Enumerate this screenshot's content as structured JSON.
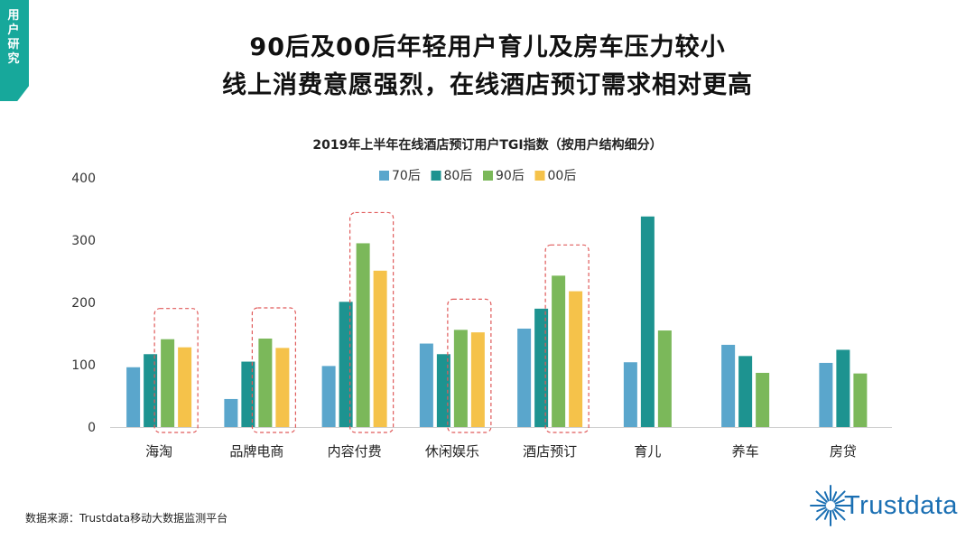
{
  "section_tag": "用户研究",
  "headline": {
    "line1": "90后及00后年轻用户育儿及房车压力较小",
    "line2": "线上消费意愿强烈，在线酒店预订需求相对更高"
  },
  "source_note": "数据来源：Trustdata移动大数据监测平台",
  "brand": {
    "name": "Trustdata",
    "color": "#1a6fb3"
  },
  "chart_data": {
    "type": "bar",
    "title": "2019年上半年在线酒店预订用户TGI指数（按用户结构细分）",
    "categories": [
      "海淘",
      "品牌电商",
      "内容付费",
      "休闲娱乐",
      "酒店预订",
      "育儿",
      "养车",
      "房贷"
    ],
    "series": [
      {
        "name": "70后",
        "color": "#5aa6cc",
        "values": [
          96,
          45,
          98,
          134,
          158,
          104,
          132,
          103
        ]
      },
      {
        "name": "80后",
        "color": "#1d9390",
        "values": [
          117,
          105,
          201,
          117,
          190,
          338,
          114,
          124
        ]
      },
      {
        "name": "90后",
        "color": "#7bb85a",
        "values": [
          141,
          142,
          295,
          156,
          243,
          155,
          87,
          86
        ]
      },
      {
        "name": "00后",
        "color": "#f5c24a",
        "values": [
          128,
          127,
          251,
          152,
          218,
          null,
          null,
          null
        ]
      }
    ],
    "ylim": [
      0,
      400
    ],
    "yticks": [
      0,
      100,
      200,
      300,
      400
    ],
    "xlabel": "",
    "ylabel": "",
    "legend": "top-center",
    "highlighted_categories": [
      "海淘",
      "品牌电商",
      "内容付费",
      "休闲娱乐",
      "酒店预订"
    ],
    "highlight_color": "#e05a5a"
  }
}
